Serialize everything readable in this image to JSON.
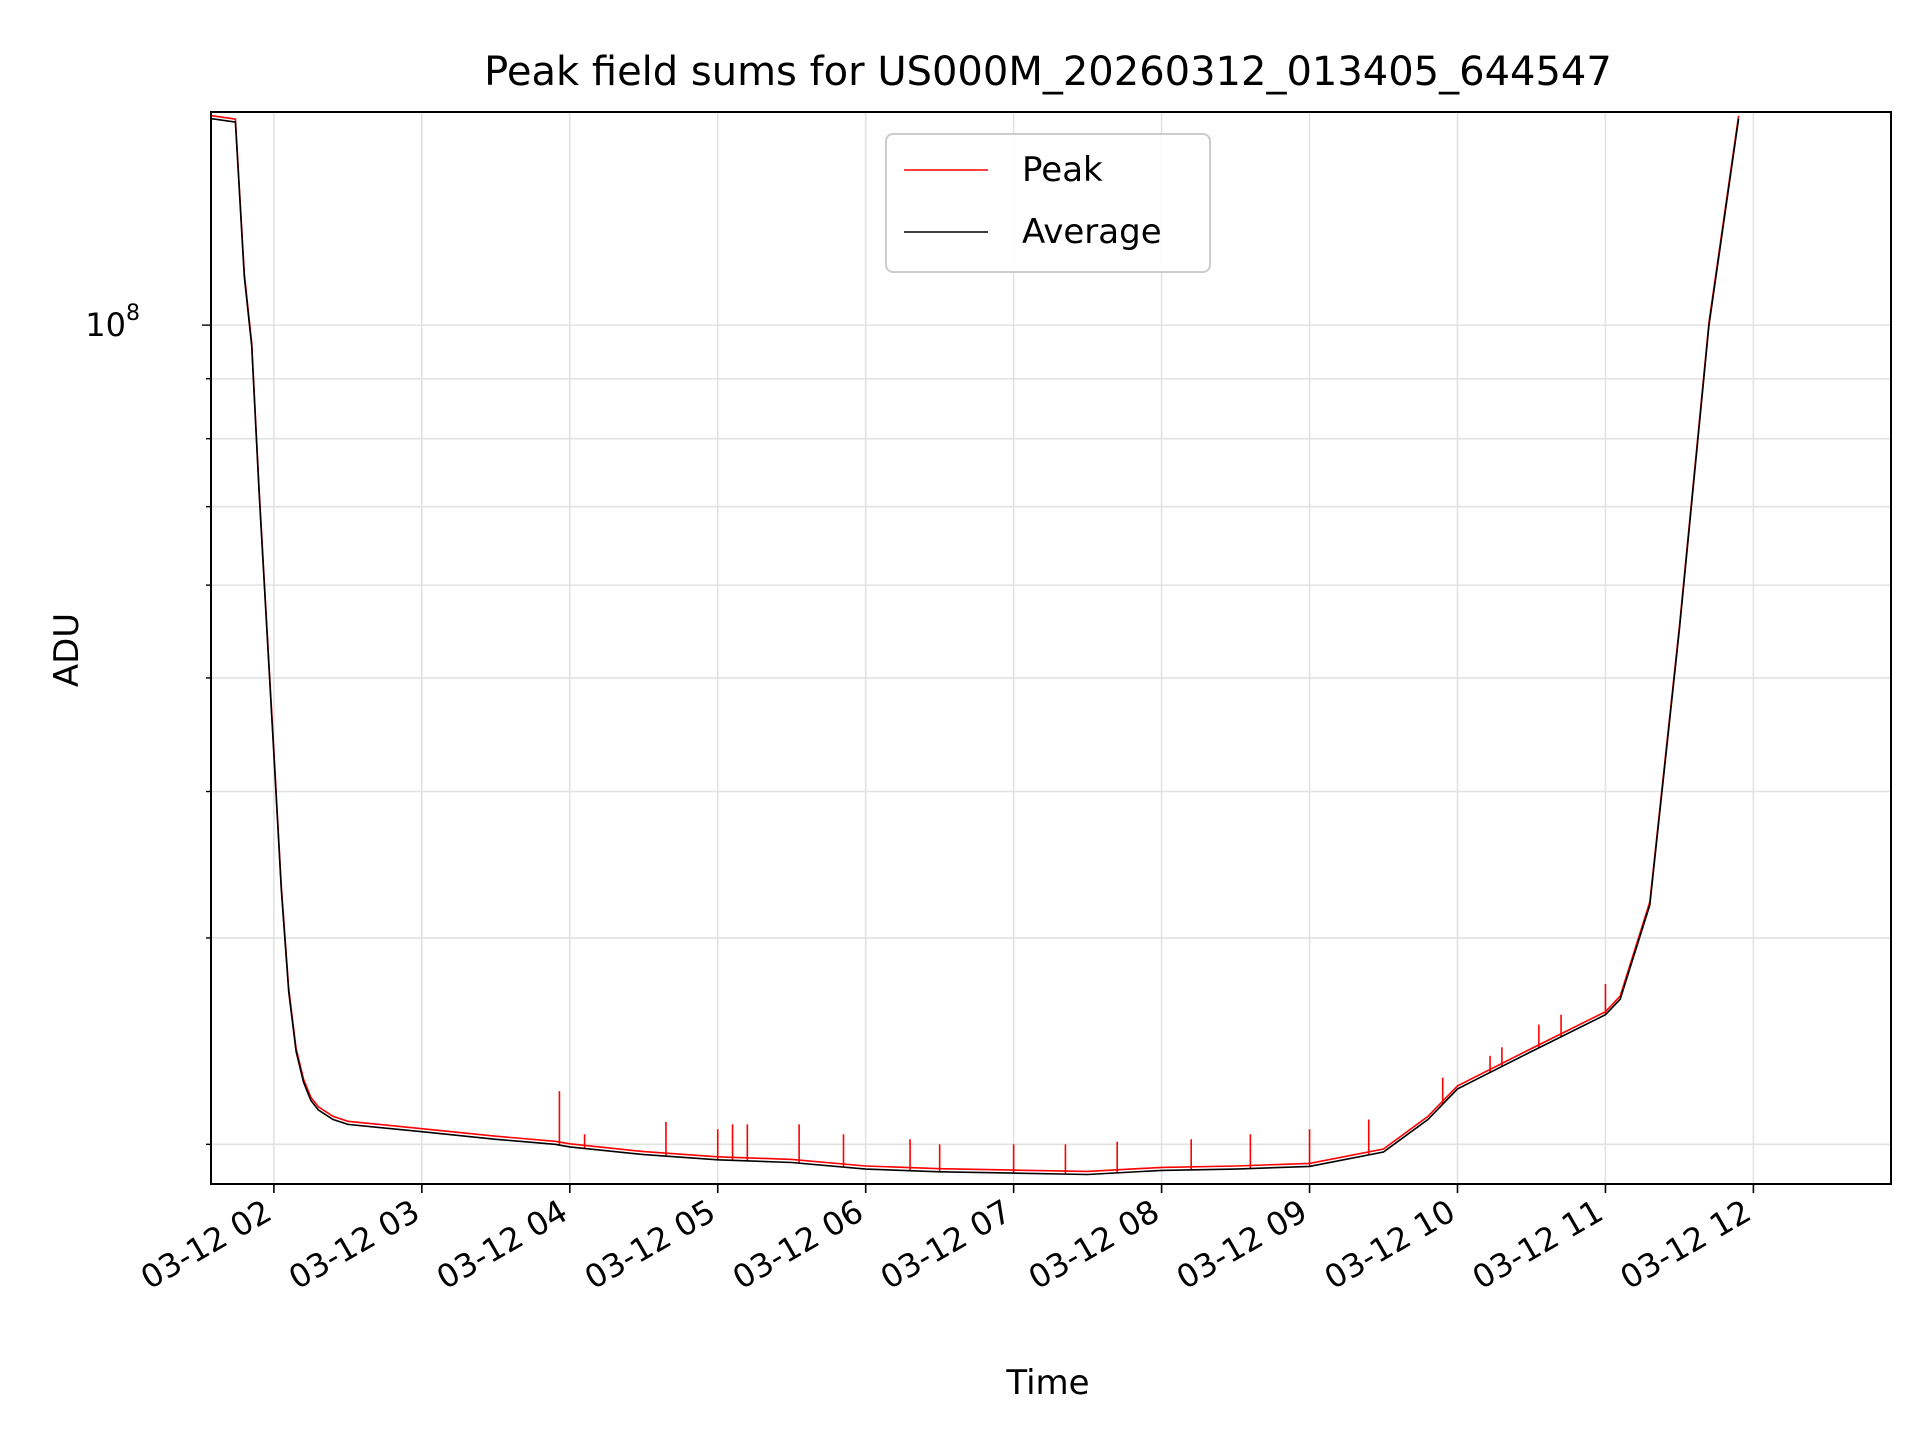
{
  "chart_data": {
    "type": "line",
    "title": "Peak field sums for US000M_20260312_013405_644547",
    "xlabel": "Time",
    "ylabel": "ADU",
    "yscale": "log",
    "y_tick_label": {
      "base": "10",
      "exponent": "8",
      "value": 100000000
    },
    "ylim": [
      18500000,
      152000000
    ],
    "xlim_hours": [
      1.575,
      12.93
    ],
    "x_tick_labels": [
      "03-12 02",
      "03-12 03",
      "03-12 04",
      "03-12 05",
      "03-12 06",
      "03-12 07",
      "03-12 08",
      "03-12 09",
      "03-12 10",
      "03-12 11",
      "03-12 12"
    ],
    "x_tick_hours": [
      2,
      3,
      4,
      5,
      6,
      7,
      8,
      9,
      10,
      11,
      12
    ],
    "grid": true,
    "legend": {
      "position": "top-center",
      "entries": [
        "Peak",
        "Average"
      ]
    },
    "series": [
      {
        "name": "Average",
        "color": "#000000",
        "x_hours": [
          1.58,
          1.74,
          1.8,
          1.85,
          1.9,
          2.0,
          2.05,
          2.1,
          2.15,
          2.2,
          2.25,
          2.3,
          2.4,
          2.5,
          3.0,
          3.5,
          3.9,
          4.0,
          4.5,
          5.0,
          5.5,
          6.0,
          6.5,
          7.0,
          7.5,
          8.0,
          8.5,
          9.0,
          9.5,
          9.8,
          10.0,
          10.5,
          11.0,
          11.1,
          11.3,
          11.5,
          11.7,
          11.9
        ],
        "values": [
          150000000,
          149000000,
          110000000,
          96000000,
          72000000,
          43000000,
          33000000,
          27000000,
          24000000,
          22600000,
          21800000,
          21400000,
          21000000,
          20800000,
          20500000,
          20200000,
          20000000,
          19900000,
          19600000,
          19400000,
          19300000,
          19050000,
          18950000,
          18900000,
          18850000,
          19000000,
          19050000,
          19150000,
          19700000,
          21000000,
          22300000,
          24000000,
          25800000,
          26600000,
          32000000,
          55000000,
          100000000,
          150000000
        ]
      },
      {
        "name": "Peak",
        "color": "#ff0000",
        "spikes": [
          {
            "hour": 3.93,
            "value": 22200000
          },
          {
            "hour": 4.1,
            "value": 20400000
          },
          {
            "hour": 4.65,
            "value": 20900000
          },
          {
            "hour": 5.0,
            "value": 20600000
          },
          {
            "hour": 5.1,
            "value": 20800000
          },
          {
            "hour": 5.2,
            "value": 20800000
          },
          {
            "hour": 5.55,
            "value": 20800000
          },
          {
            "hour": 5.85,
            "value": 20400000
          },
          {
            "hour": 6.3,
            "value": 20200000
          },
          {
            "hour": 6.5,
            "value": 20000000
          },
          {
            "hour": 7.0,
            "value": 20000000
          },
          {
            "hour": 7.35,
            "value": 20000000
          },
          {
            "hour": 7.7,
            "value": 20100000
          },
          {
            "hour": 8.2,
            "value": 20200000
          },
          {
            "hour": 8.6,
            "value": 20400000
          },
          {
            "hour": 9.0,
            "value": 20600000
          },
          {
            "hour": 9.4,
            "value": 21000000
          },
          {
            "hour": 9.9,
            "value": 22800000
          },
          {
            "hour": 10.3,
            "value": 24200000
          },
          {
            "hour": 10.7,
            "value": 25800000
          },
          {
            "hour": 11.0,
            "value": 27400000
          },
          {
            "hour": 10.22,
            "value": 23800000
          },
          {
            "hour": 10.55,
            "value": 25300000
          }
        ]
      }
    ]
  }
}
